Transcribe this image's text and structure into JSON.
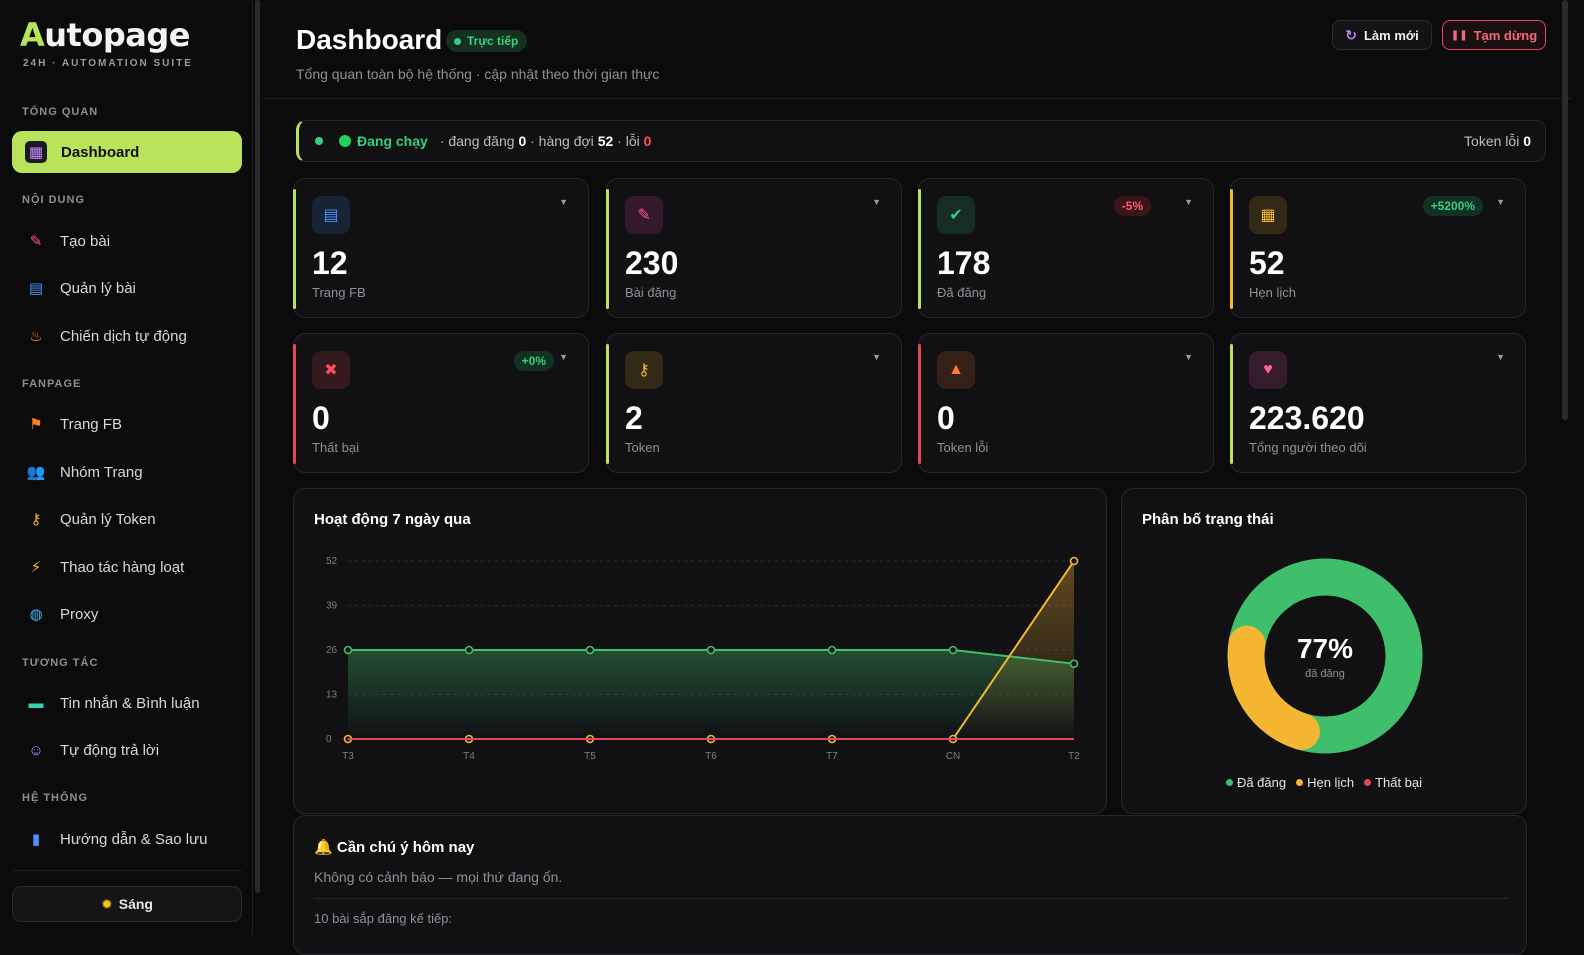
{
  "brand": {
    "logo": "Autopage",
    "tagline": "24H · AUTOMATION SUITE"
  },
  "sidebar": {
    "sections": [
      {
        "title": "TỔNG QUAN",
        "items": [
          {
            "label": "Dashboard",
            "icon": "grid-icon",
            "active": true
          }
        ]
      },
      {
        "title": "NỘI DUNG",
        "items": [
          {
            "label": "Tạo bài",
            "icon": "pencil-icon"
          },
          {
            "label": "Quản lý bài",
            "icon": "document-icon"
          },
          {
            "label": "Chiến dịch tự động",
            "icon": "rocket-icon"
          }
        ]
      },
      {
        "title": "FANPAGE",
        "items": [
          {
            "label": "Trang FB",
            "icon": "flag-icon"
          },
          {
            "label": "Nhóm Trang",
            "icon": "users-icon"
          },
          {
            "label": "Quản lý Token",
            "icon": "key-icon"
          },
          {
            "label": "Thao tác hàng loạt",
            "icon": "lightning-icon"
          },
          {
            "label": "Proxy",
            "icon": "globe-icon"
          }
        ]
      },
      {
        "title": "TƯƠNG TÁC",
        "items": [
          {
            "label": "Tin nhắn & Bình luận",
            "icon": "chat-icon"
          },
          {
            "label": "Tự động trả lời",
            "icon": "robot-icon"
          }
        ]
      },
      {
        "title": "HỆ THỐNG",
        "items": [
          {
            "label": "Hướng dẫn & Sao lưu",
            "icon": "book-icon"
          }
        ]
      }
    ],
    "theme_button": "Sáng"
  },
  "header": {
    "title": "Dashboard",
    "live_badge": "Trực tiếp",
    "subtitle": "Tổng quan toàn bộ hệ thống · cập nhật theo thời gian thực",
    "refresh_label": "Làm mới",
    "pause_label": "Tạm dừng"
  },
  "status_bar": {
    "state": "Đang chạy",
    "posting_label": "· đang đăng",
    "posting": "0",
    "queue_label": "· hàng đợi",
    "queue": "52",
    "errors_label": "· lỗi",
    "errors": "0",
    "token_errors_label": "Token lỗi",
    "token_errors": "0"
  },
  "cards": [
    {
      "value": "12",
      "label": "Trang FB",
      "icon": "document-icon",
      "accent": "#b9e35a"
    },
    {
      "value": "230",
      "label": "Bài đăng",
      "icon": "pencil-icon",
      "accent": "#b9e35a"
    },
    {
      "value": "178",
      "label": "Đã đăng",
      "icon": "check-icon",
      "accent": "#b9e35a",
      "change": "-5%"
    },
    {
      "value": "52",
      "label": "Hẹn lịch",
      "icon": "calendar-icon",
      "accent": "#f5b731",
      "change": "+5200%"
    },
    {
      "value": "0",
      "label": "Thất bại",
      "icon": "x-circle-icon",
      "accent": "#e0485a",
      "change": "+0%"
    },
    {
      "value": "2",
      "label": "Token",
      "icon": "key-icon",
      "accent": "#b9e35a"
    },
    {
      "value": "0",
      "label": "Token lỗi",
      "icon": "warning-icon",
      "accent": "#e0485a"
    },
    {
      "value": "223.620",
      "label": "Tổng người theo dõi",
      "icon": "heart-icon",
      "accent": "#b9e35a"
    }
  ],
  "activity": {
    "title": "Hoạt động 7 ngày qua",
    "chart_data": {
      "type": "line",
      "categories": [
        "T3",
        "T4",
        "T5",
        "T6",
        "T7",
        "CN",
        "T2"
      ],
      "yticks": [
        0,
        13,
        26,
        39,
        52
      ],
      "ylim": [
        0,
        52
      ],
      "series": [
        {
          "values": [
            26,
            26,
            26,
            26,
            26,
            26,
            22
          ],
          "color": "#3fbf6c"
        },
        {
          "values": [
            0,
            0,
            0,
            0,
            0,
            0,
            52
          ],
          "color": "#f5b731"
        },
        {
          "values": [
            0,
            0,
            0,
            0,
            0,
            0,
            0
          ],
          "color": "#e0485a"
        }
      ]
    }
  },
  "distribution": {
    "title": "Phân bố trạng thái",
    "center_value": "77%",
    "center_label": "đã đăng",
    "chart_data": {
      "type": "pie",
      "slices": [
        {
          "name": "Đã đăng",
          "value": 178,
          "color": "#3fbf6c"
        },
        {
          "name": "Hẹn lịch",
          "value": 52,
          "color": "#f5b731"
        },
        {
          "name": "Thất bại",
          "value": 0,
          "color": "#e0485a"
        }
      ]
    }
  },
  "attention": {
    "title": "Cần chú ý hôm nay",
    "icon": "bell-icon",
    "message": "Không có cảnh báo — mọi thứ đang ổn.",
    "next_label": "10 bài sắp đăng kế tiếp:"
  }
}
